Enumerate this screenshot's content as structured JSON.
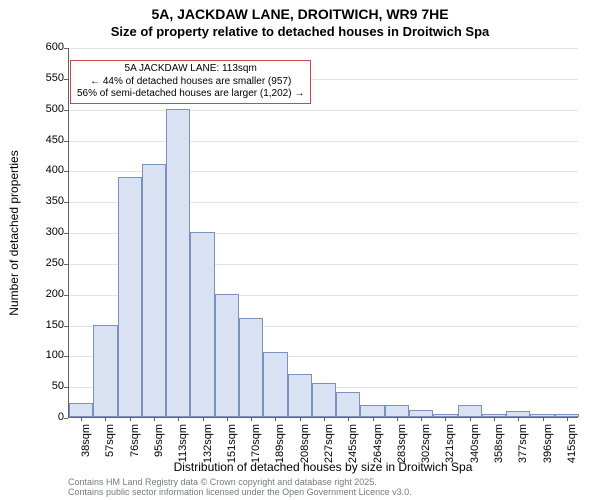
{
  "title_line1": "5A, JACKDAW LANE, DROITWICH, WR9 7HE",
  "title_line2": "Size of property relative to detached houses in Droitwich Spa",
  "ylabel": "Number of detached properties",
  "xlabel": "Distribution of detached houses by size in Droitwich Spa",
  "ylim": [
    0,
    600
  ],
  "ytick_step": 50,
  "bar_color": "#d8e2f3",
  "bar_border_color": "#7b92c1",
  "grid_color": "#e2e3e5",
  "axis_color": "#626365",
  "background_color": "#ffffff",
  "annotation_border_color": "#c7484a",
  "label_fontsize": 12,
  "tick_fontsize": 11,
  "title_fontsize": 14,
  "categories": [
    "38sqm",
    "57sqm",
    "76sqm",
    "95sqm",
    "113sqm",
    "132sqm",
    "151sqm",
    "170sqm",
    "189sqm",
    "208sqm",
    "227sqm",
    "245sqm",
    "264sqm",
    "283sqm",
    "302sqm",
    "321sqm",
    "340sqm",
    "358sqm",
    "377sqm",
    "396sqm",
    "415sqm"
  ],
  "values": [
    22,
    150,
    390,
    410,
    500,
    300,
    200,
    160,
    105,
    70,
    55,
    40,
    20,
    20,
    12,
    5,
    20,
    5,
    10,
    5,
    5
  ],
  "annotation": {
    "line1": "5A JACKDAW LANE: 113sqm",
    "line2": "← 44% of detached houses are smaller (957)",
    "line3": "56% of semi-detached houses are larger (1,202) →"
  },
  "credits": {
    "line1": "Contains HM Land Registry data © Crown copyright and database right 2025.",
    "line2": "Contains public sector information licensed under the Open Government Licence v3.0."
  }
}
